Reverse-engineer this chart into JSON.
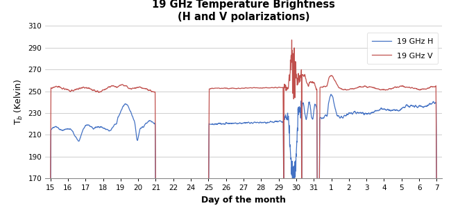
{
  "title_line1": "19 GHz Temperature Brightness",
  "title_line2": "(H and V polarizations)",
  "xlabel": "Day of the month",
  "ylabel": "T$_b$ (Kelvin)",
  "ylim": [
    170,
    310
  ],
  "yticks": [
    170,
    190,
    210,
    230,
    250,
    270,
    290,
    310
  ],
  "xtick_labels": [
    "15",
    "16",
    "17",
    "18",
    "19",
    "20",
    "21",
    "22",
    "24",
    "25",
    "26",
    "27",
    "28",
    "29",
    "30",
    "31",
    "1",
    "2",
    "3",
    "4",
    "5",
    "6",
    "7"
  ],
  "color_H": "#4472C4",
  "color_V": "#C0504D",
  "legend_H": "19 GHz H",
  "legend_V": "19 GHz V",
  "background_color": "#FFFFFF",
  "grid_color": "#BBBBBB"
}
